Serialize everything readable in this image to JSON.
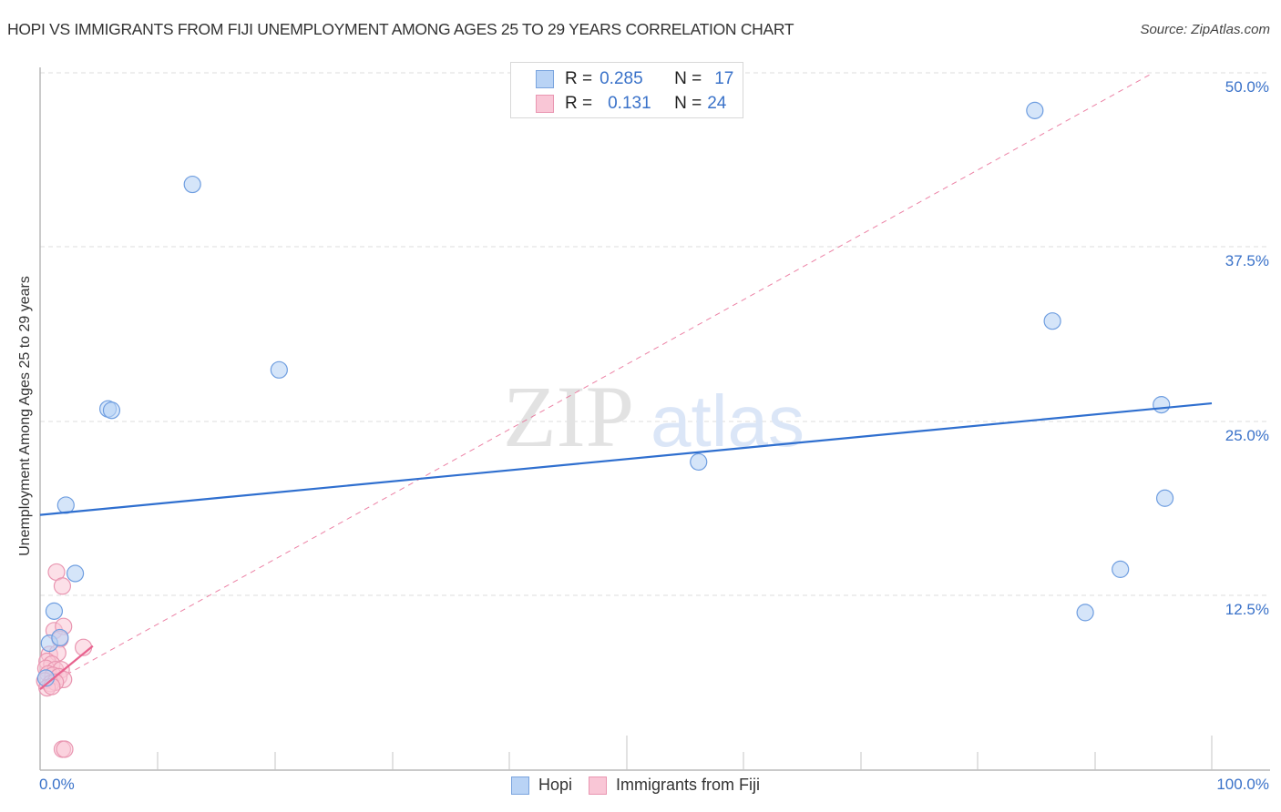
{
  "header": {
    "title": "HOPI VS IMMIGRANTS FROM FIJI UNEMPLOYMENT AMONG AGES 25 TO 29 YEARS CORRELATION CHART",
    "source": "Source: ZipAtlas.com"
  },
  "legend_top": {
    "rows": [
      {
        "series": "Hopi",
        "r_label": "R =",
        "r_value": "0.285",
        "n_label": "N =",
        "n_value": "17",
        "color": "#b9d3f5"
      },
      {
        "series": "Immigrants from Fiji",
        "r_label": "R =",
        "r_value": "0.131",
        "n_label": "N =",
        "n_value": "24",
        "color": "#f9c6d6"
      }
    ]
  },
  "legend_bottom": {
    "items": [
      {
        "label": "Hopi",
        "color": "#b9d3f5"
      },
      {
        "label": "Immigrants from Fiji",
        "color": "#f9c6d6"
      }
    ]
  },
  "axes": {
    "ylabel": "Unemployment Among Ages 25 to 29 years",
    "y_ticks": [
      "50.0%",
      "37.5%",
      "25.0%",
      "12.5%"
    ],
    "x_ticks": [
      "0.0%",
      "100.0%"
    ]
  },
  "watermark": {
    "part1": "ZIP",
    "part2": "atlas"
  },
  "colors": {
    "hopi_fill": "#b9d3f5",
    "hopi_stroke": "#6f9ee0",
    "hopi_line": "#2f6fcf",
    "fiji_fill": "#f9c6d6",
    "fiji_stroke": "#e996b1",
    "fiji_line": "#e8638f",
    "tick_text": "#3a72c9"
  },
  "chart_data": {
    "type": "scatter",
    "title": "HOPI VS IMMIGRANTS FROM FIJI UNEMPLOYMENT AMONG AGES 25 TO 29 YEARS CORRELATION CHART",
    "xlabel": "",
    "ylabel": "Unemployment Among Ages 25 to 29 years",
    "xlim": [
      0,
      100
    ],
    "ylim": [
      0,
      50
    ],
    "x_tick_labels": [
      "0.0%",
      "100.0%"
    ],
    "y_tick_labels": [
      "12.5%",
      "25.0%",
      "37.5%",
      "50.0%"
    ],
    "grid": {
      "horizontal": true,
      "style": "dashed"
    },
    "legend_position": "top-center and bottom-center",
    "series": [
      {
        "name": "Hopi",
        "R": 0.285,
        "N": 17,
        "points": [
          [
            13.0,
            42.0
          ],
          [
            5.8,
            25.9
          ],
          [
            6.1,
            25.8
          ],
          [
            20.4,
            28.7
          ],
          [
            2.2,
            19.0
          ],
          [
            3.0,
            14.1
          ],
          [
            1.2,
            11.4
          ],
          [
            0.8,
            9.1
          ],
          [
            1.7,
            9.5
          ],
          [
            0.5,
            6.6
          ],
          [
            56.2,
            22.1
          ],
          [
            84.9,
            47.3
          ],
          [
            86.4,
            32.2
          ],
          [
            95.7,
            26.2
          ],
          [
            96.0,
            19.5
          ],
          [
            92.2,
            14.4
          ],
          [
            89.2,
            11.3
          ]
        ],
        "trendline": {
          "x": [
            0,
            100
          ],
          "y": [
            18.3,
            26.3
          ],
          "style": "solid"
        }
      },
      {
        "name": "Immigrants from Fiji",
        "R": 0.131,
        "N": 24,
        "points": [
          [
            1.4,
            14.2
          ],
          [
            1.9,
            13.2
          ],
          [
            1.2,
            10.0
          ],
          [
            2.0,
            10.3
          ],
          [
            1.7,
            9.4
          ],
          [
            3.7,
            8.8
          ],
          [
            0.8,
            8.3
          ],
          [
            1.5,
            8.4
          ],
          [
            0.6,
            7.8
          ],
          [
            1.0,
            7.6
          ],
          [
            0.5,
            7.3
          ],
          [
            1.3,
            7.2
          ],
          [
            1.8,
            7.2
          ],
          [
            0.7,
            6.9
          ],
          [
            1.1,
            6.8
          ],
          [
            1.6,
            6.7
          ],
          [
            2.0,
            6.5
          ],
          [
            0.4,
            6.4
          ],
          [
            0.9,
            6.2
          ],
          [
            1.3,
            6.3
          ],
          [
            0.6,
            5.9
          ],
          [
            1.0,
            6.0
          ],
          [
            1.9,
            1.5
          ],
          [
            2.1,
            1.5
          ]
        ],
        "trendline_solid": {
          "x": [
            0,
            4.5
          ],
          "y": [
            5.8,
            8.9
          ]
        },
        "trendline_dashed": {
          "x": [
            0,
            95
          ],
          "y": [
            5.8,
            50.0
          ]
        }
      }
    ]
  }
}
